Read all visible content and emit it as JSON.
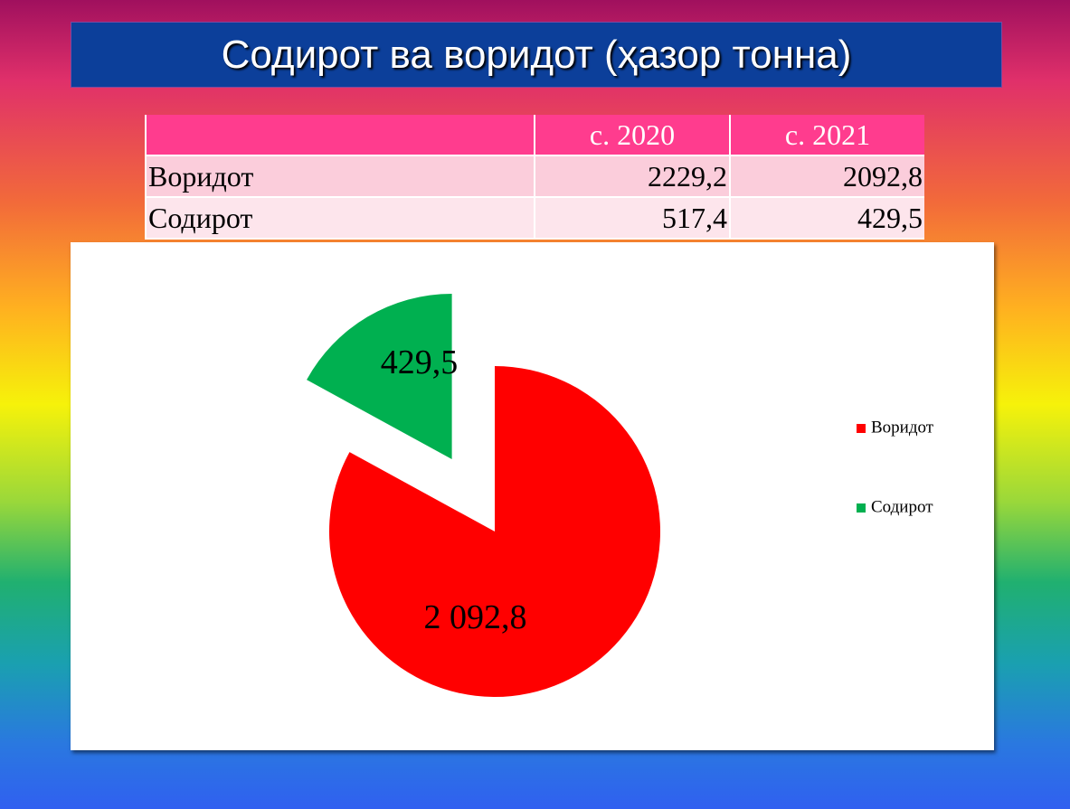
{
  "title": "Содирот ва воридот (ҳазор тонна)",
  "table": {
    "header": [
      "с. 2020",
      "с. 2021"
    ],
    "rows": [
      [
        "Воридот",
        "2229,2",
        "2092,8"
      ],
      [
        "Содирот",
        "517,4",
        "429,5"
      ]
    ]
  },
  "chart_data": {
    "type": "pie",
    "categories": [
      "Воридот",
      "Содирот"
    ],
    "values": [
      2092.8,
      429.5
    ],
    "value_labels": [
      "2 092,8",
      "429,5"
    ],
    "colors": [
      "#ff0000",
      "#00b050"
    ],
    "exploded": [
      false,
      true
    ],
    "legend": "right"
  }
}
